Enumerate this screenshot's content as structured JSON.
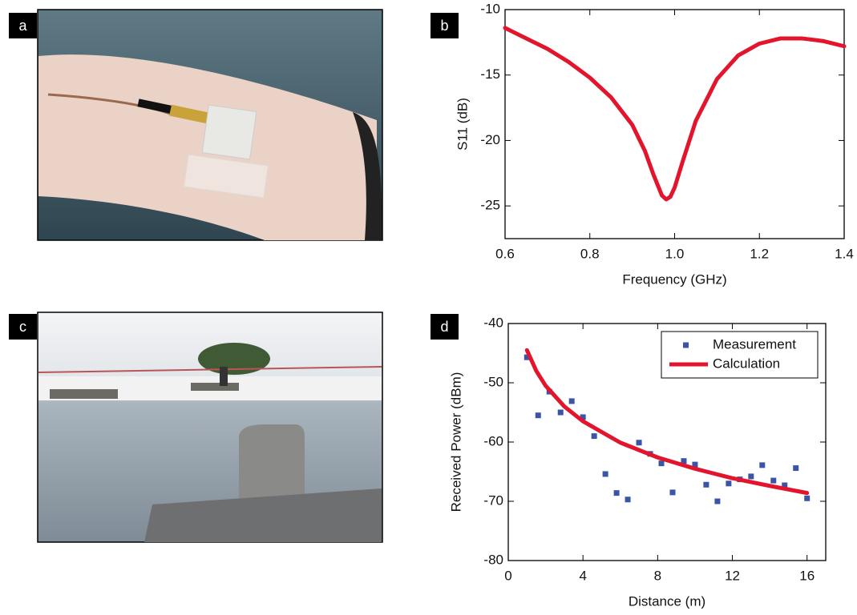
{
  "photos": [
    {
      "label": "a"
    },
    {
      "label": "c"
    }
  ],
  "chart_data": [
    {
      "type": "line",
      "label": "b",
      "x_label": "Frequency (GHz)",
      "y_label": "S11 (dB)",
      "xlim": [
        0.6,
        1.4
      ],
      "ylim": [
        -27.5,
        -10
      ],
      "xticks": [
        0.6,
        0.8,
        {
          "value": 1,
          "label": "1.0"
        },
        1.2,
        1.4
      ],
      "yticks": [
        -10,
        -15,
        -20,
        -25
      ],
      "series": [
        {
          "type": "line",
          "color": "#e3152d",
          "x": [
            0.6,
            0.65,
            0.7,
            0.75,
            0.8,
            0.85,
            0.9,
            0.93,
            0.95,
            0.97,
            0.98,
            0.99,
            1.0,
            1.02,
            1.05,
            1.1,
            1.15,
            1.2,
            1.25,
            1.3,
            1.35,
            1.4
          ],
          "values": [
            -11.4,
            -12.2,
            -13.0,
            -14.0,
            -15.2,
            -16.7,
            -18.8,
            -20.8,
            -22.6,
            -24.2,
            -24.5,
            -24.3,
            -23.6,
            -21.5,
            -18.5,
            -15.3,
            -13.5,
            -12.6,
            -12.2,
            -12.2,
            -12.4,
            -12.8
          ]
        }
      ]
    },
    {
      "type": "scatter",
      "label": "d",
      "x_label": "Distance (m)",
      "y_label": "Received Power (dBm)",
      "xlim": [
        0,
        17
      ],
      "ylim": [
        -80,
        -40
      ],
      "xticks": [
        0,
        4,
        8,
        12,
        16
      ],
      "yticks": [
        -40,
        -50,
        -60,
        -70,
        -80
      ],
      "legend": "upper right",
      "series": [
        {
          "name": "Measurement",
          "type": "scatter",
          "color": "#3a55a5",
          "x": [
            1.0,
            1.6,
            2.2,
            2.8,
            3.4,
            4.0,
            4.6,
            5.2,
            5.8,
            6.4,
            7.0,
            7.6,
            8.2,
            8.8,
            9.4,
            10.0,
            10.6,
            11.2,
            11.8,
            12.4,
            13.0,
            13.6,
            14.2,
            14.8,
            15.4,
            16.0
          ],
          "values": [
            -45.7,
            -55.5,
            -51.5,
            -55.0,
            -53.1,
            -55.8,
            -59.0,
            -65.4,
            -68.6,
            -69.7,
            -60.1,
            -62.0,
            -63.6,
            -68.5,
            -63.2,
            -63.8,
            -67.2,
            -70.0,
            -67.0,
            -66.3,
            -65.8,
            -63.9,
            -66.5,
            -67.3,
            -64.4,
            -69.5
          ]
        },
        {
          "name": "Calculation",
          "type": "line",
          "color": "#e3152d",
          "x": [
            1,
            1.5,
            2,
            3,
            4,
            6,
            8,
            10,
            12,
            14,
            16
          ],
          "values": [
            -44.5,
            -48.0,
            -50.5,
            -54.0,
            -56.5,
            -60.1,
            -62.6,
            -64.5,
            -66.1,
            -67.4,
            -68.6
          ]
        }
      ]
    }
  ]
}
